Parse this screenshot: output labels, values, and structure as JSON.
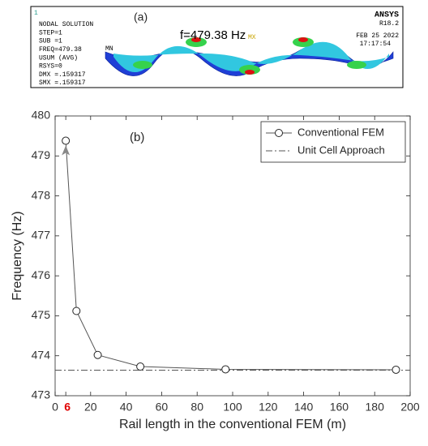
{
  "inset": {
    "label": "(a)",
    "annotation": "f=479.38 Hz",
    "corner_number": "1",
    "lines": [
      "NODAL SOLUTION",
      "STEP=1",
      "SUB =1",
      "FREQ=479.38",
      "USUM      (AVG)",
      "RSYS=0",
      "DMX =.159317",
      "SMX =.159317"
    ],
    "brand": "ANSYS",
    "version": "R18.2",
    "date": "FEB 25 2022",
    "time": "17:17:54",
    "min_label": "MN",
    "max_label": "MX"
  },
  "chart_data": {
    "type": "line",
    "label": "(b)",
    "x_label": "Rail length in the conventional FEM (m)",
    "y_label": "Frequency (Hz)",
    "x": [
      6,
      12,
      24,
      48,
      96,
      192
    ],
    "series": [
      {
        "name": "Conventional FEM",
        "color": "#555555",
        "marker": "circle",
        "values": [
          479.38,
          475.12,
          474.02,
          473.73,
          473.66,
          473.65
        ]
      }
    ],
    "reference_lines": [
      {
        "name": "Unit Cell Approach",
        "y": 473.64,
        "color": "#555555",
        "style": "dashdot"
      }
    ],
    "xlim": [
      0,
      200
    ],
    "xticks": [
      0,
      6,
      20,
      40,
      60,
      80,
      100,
      120,
      140,
      160,
      180,
      200
    ],
    "highlight_xtick": 6,
    "highlight_color": "#e00000",
    "ylim": [
      473,
      480
    ],
    "yticks": [
      473,
      474,
      475,
      476,
      477,
      478,
      479,
      480
    ],
    "grid": false,
    "legend": "northeast"
  }
}
